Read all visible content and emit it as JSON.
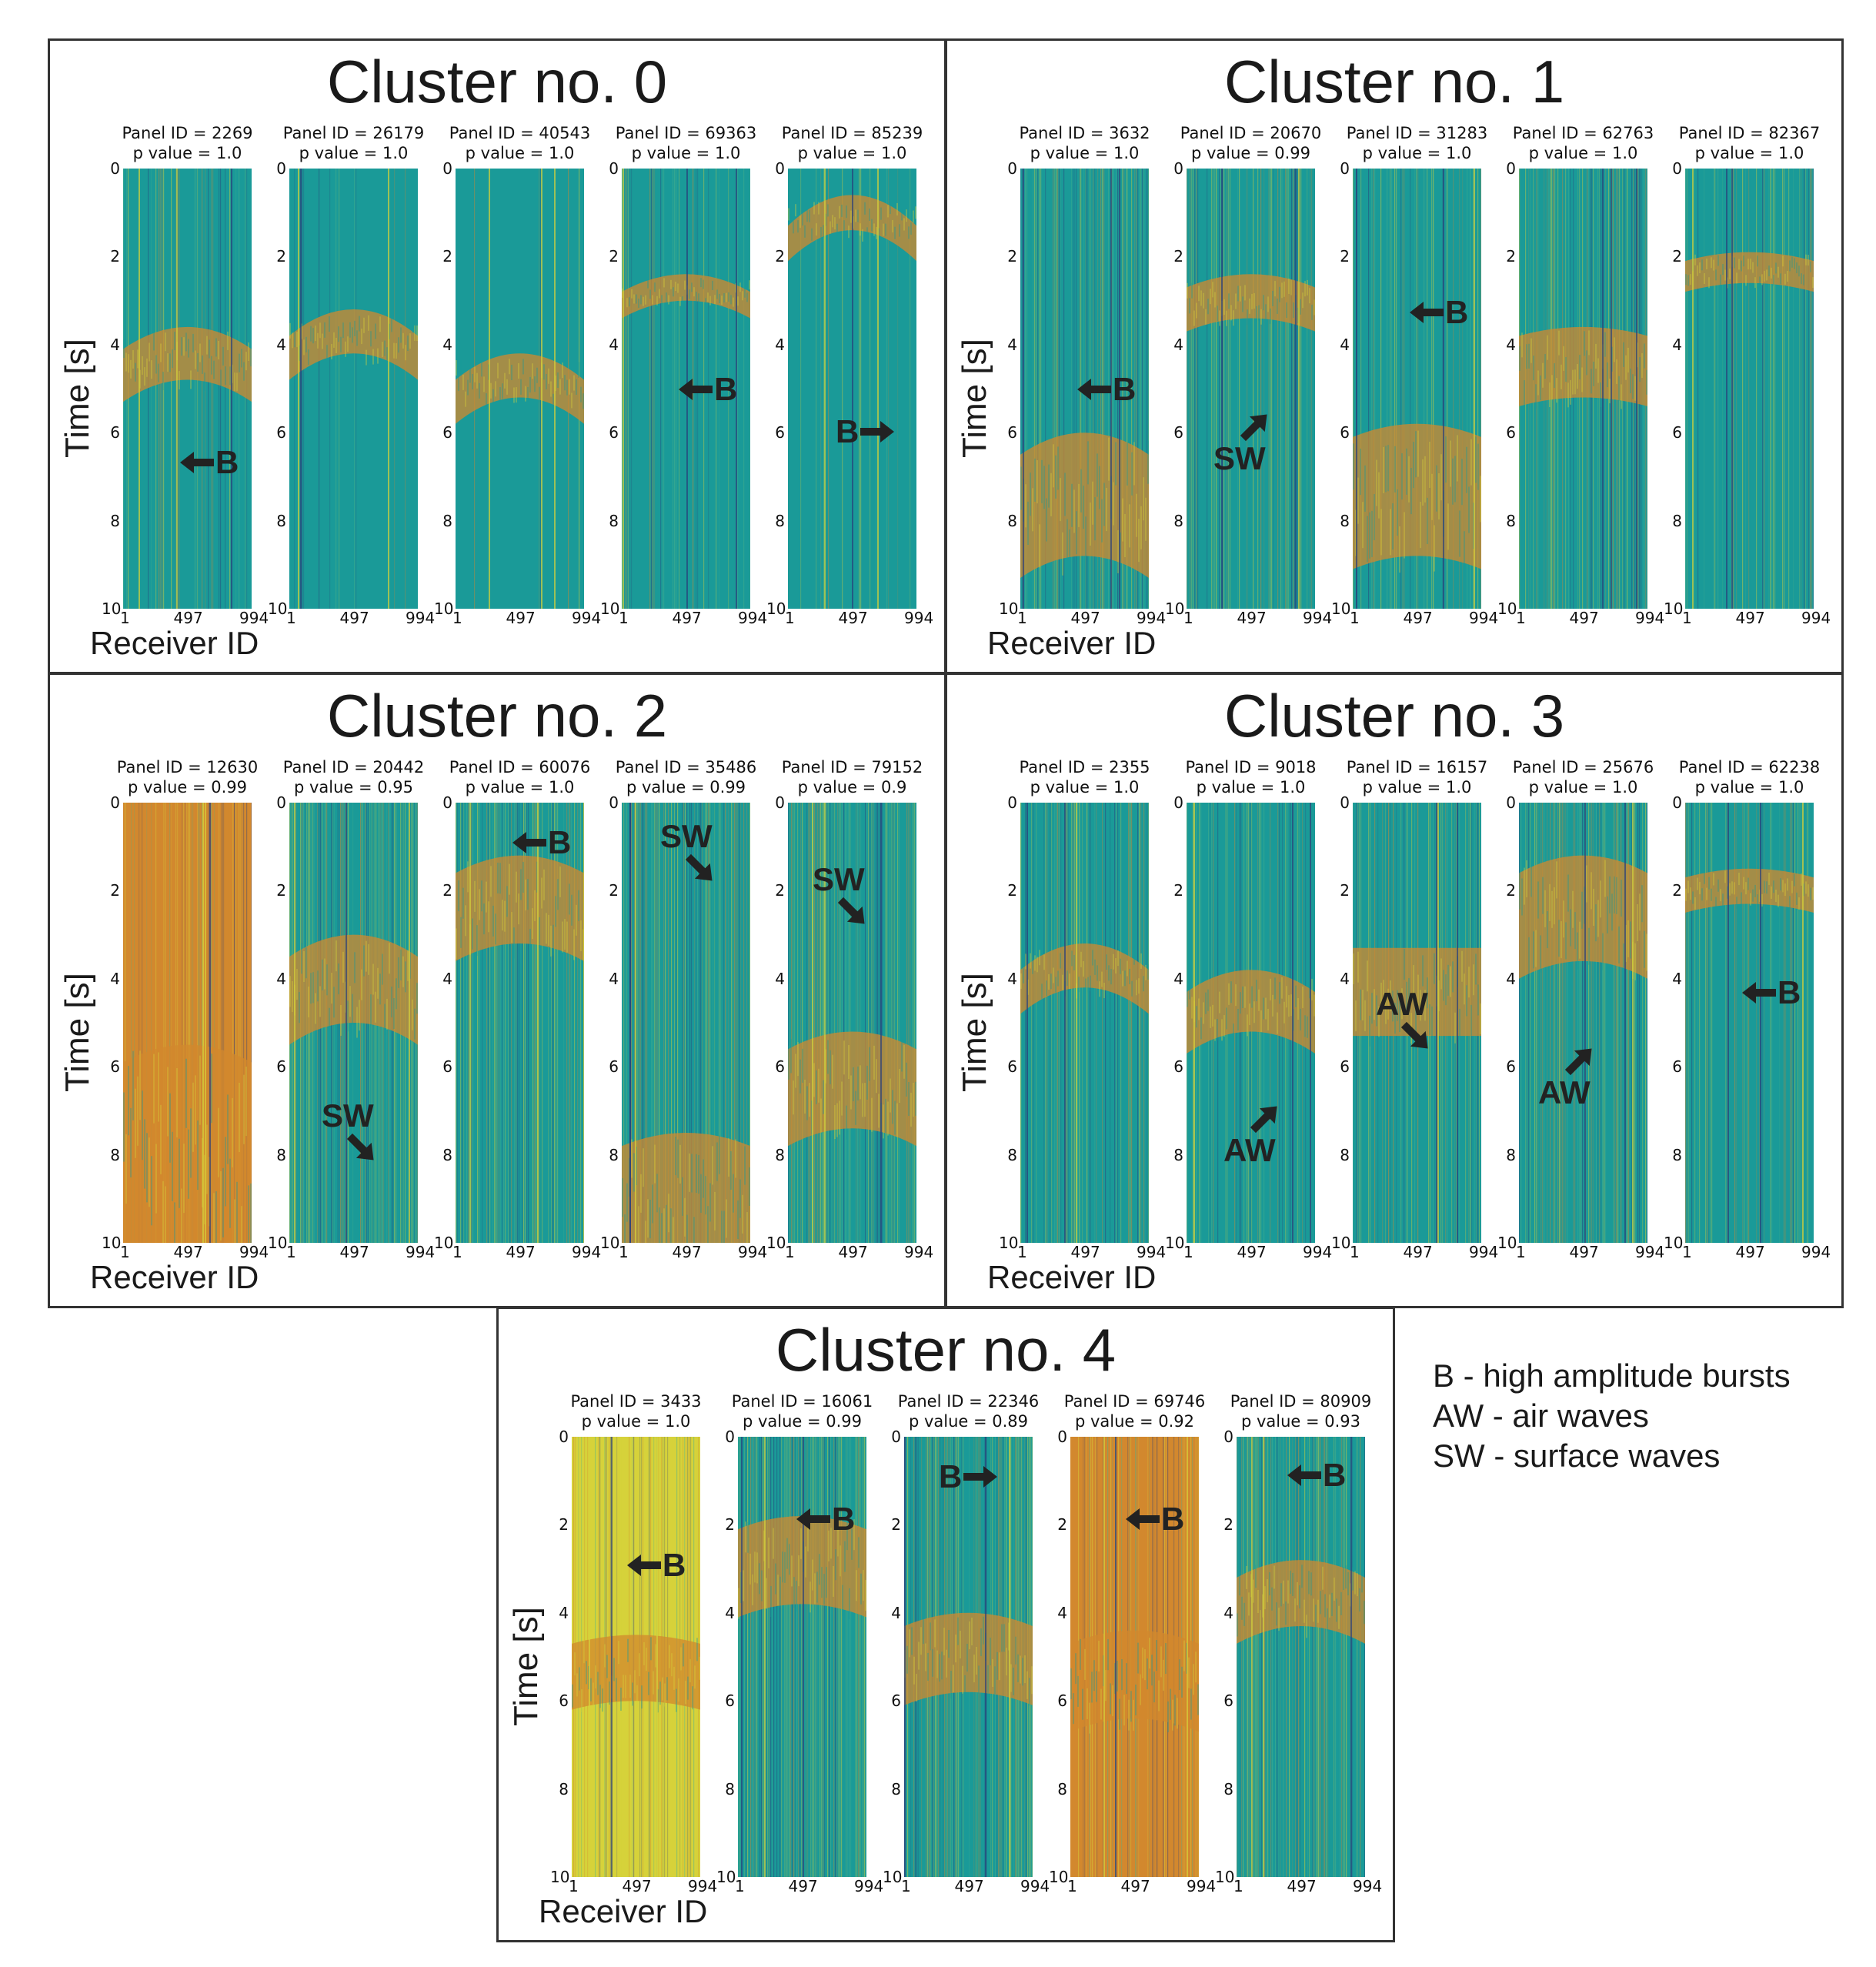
{
  "legend": {
    "b": "B - high amplitude bursts",
    "aw": "AW - air waves",
    "sw": "SW - surface waves"
  },
  "axes": {
    "ylabel": "Time [s]",
    "xlabel": "Receiver ID",
    "yticks": [
      "0",
      "2",
      "4",
      "6",
      "8",
      "10"
    ],
    "xticks": [
      "1",
      "497",
      "994"
    ]
  },
  "colors": {
    "teal": "#1a9a98",
    "orange": "#d2882e",
    "yellow": "#d6d23a",
    "navy": "#2a3f7a"
  },
  "clusters": [
    {
      "title": "Cluster no. 0",
      "panels": [
        {
          "panel_id": "Panel ID = 2269",
          "p_value": "p value = 1.0",
          "anno": "B",
          "arrow": "left"
        },
        {
          "panel_id": "Panel ID = 26179",
          "p_value": "p value = 1.0"
        },
        {
          "panel_id": "Panel ID = 40543",
          "p_value": "p value = 1.0"
        },
        {
          "panel_id": "Panel ID = 69363",
          "p_value": "p value = 1.0",
          "anno": "B",
          "arrow": "left"
        },
        {
          "panel_id": "Panel ID = 85239",
          "p_value": "p value = 1.0",
          "anno": "B",
          "arrow": "right"
        }
      ]
    },
    {
      "title": "Cluster no. 1",
      "panels": [
        {
          "panel_id": "Panel ID = 3632",
          "p_value": "p value = 1.0",
          "anno": "B",
          "arrow": "left"
        },
        {
          "panel_id": "Panel ID = 20670",
          "p_value": "p value = 0.99",
          "anno": "SW",
          "arrow": "upright"
        },
        {
          "panel_id": "Panel ID = 31283",
          "p_value": "p value = 1.0",
          "anno": "B",
          "arrow": "left"
        },
        {
          "panel_id": "Panel ID = 62763",
          "p_value": "p value = 1.0"
        },
        {
          "panel_id": "Panel ID = 82367",
          "p_value": "p value = 1.0"
        }
      ]
    },
    {
      "title": "Cluster no. 2",
      "panels": [
        {
          "panel_id": "Panel ID = 12630",
          "p_value": "p value = 0.99"
        },
        {
          "panel_id": "Panel ID = 20442",
          "p_value": "p value = 0.95",
          "anno": "SW",
          "arrow": "downright"
        },
        {
          "panel_id": "Panel ID = 60076",
          "p_value": "p value = 1.0",
          "anno": "B",
          "arrow": "left"
        },
        {
          "panel_id": "Panel ID = 35486",
          "p_value": "p value = 0.99",
          "anno": "SW",
          "arrow": "downright"
        },
        {
          "panel_id": "Panel ID = 79152",
          "p_value": "p value = 0.9",
          "anno": "SW",
          "arrow": "downright"
        }
      ]
    },
    {
      "title": "Cluster no. 3",
      "panels": [
        {
          "panel_id": "Panel ID = 2355",
          "p_value": "p value = 1.0"
        },
        {
          "panel_id": "Panel ID = 9018",
          "p_value": "p value = 1.0",
          "anno": "AW",
          "arrow": "upright"
        },
        {
          "panel_id": "Panel ID = 16157",
          "p_value": "p value = 1.0",
          "anno": "AW",
          "arrow": "downright"
        },
        {
          "panel_id": "Panel ID = 25676",
          "p_value": "p value = 1.0",
          "anno": "AW",
          "arrow": "upright"
        },
        {
          "panel_id": "Panel ID = 62238",
          "p_value": "p value = 1.0",
          "anno": "B",
          "arrow": "left"
        }
      ]
    },
    {
      "title": "Cluster no. 4",
      "panels": [
        {
          "panel_id": "Panel ID = 3433",
          "p_value": "p value = 1.0",
          "anno": "B",
          "arrow": "left"
        },
        {
          "panel_id": "Panel ID = 16061",
          "p_value": "p value = 0.99",
          "anno": "B",
          "arrow": "left"
        },
        {
          "panel_id": "Panel ID = 22346",
          "p_value": "p value = 0.89",
          "anno": "B",
          "arrow": "right"
        },
        {
          "panel_id": "Panel ID = 69746",
          "p_value": "p value = 0.92",
          "anno": "B",
          "arrow": "left"
        },
        {
          "panel_id": "Panel ID = 80909",
          "p_value": "p value = 0.93",
          "anno": "B",
          "arrow": "left"
        }
      ]
    }
  ]
}
